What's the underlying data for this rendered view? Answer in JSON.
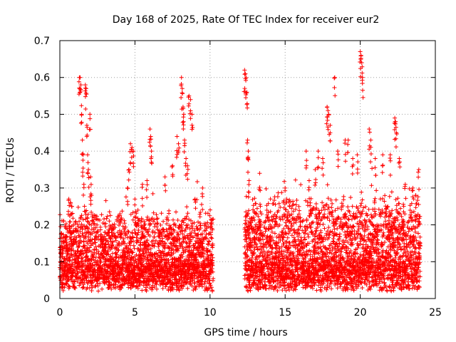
{
  "chart_data": {
    "type": "scatter",
    "title": "Day 168 of 2025, Rate Of TEC Index for receiver eur2",
    "xlabel": "GPS time / hours",
    "ylabel": "ROTI / TECUs",
    "xlim": [
      0,
      25
    ],
    "ylim": [
      0,
      0.7
    ],
    "xticks": [
      0,
      5,
      10,
      15,
      20,
      25
    ],
    "yticks": [
      0,
      0.1,
      0.2,
      0.3,
      0.4,
      0.5,
      0.6,
      0.7
    ],
    "xtick_labels": [
      "0",
      "5",
      "10",
      "15",
      "20",
      "25"
    ],
    "ytick_labels": [
      "0",
      "0.1",
      "0.2",
      "0.3",
      "0.4",
      "0.5",
      "0.6",
      "0.7"
    ],
    "grid": true,
    "marker": "+",
    "color": "#ff0000",
    "series": [
      {
        "segments": [
          {
            "start": 0.0,
            "end": 10.2,
            "baseline": 0.09,
            "spread": 0.16
          },
          {
            "start": 12.3,
            "end": 24.0,
            "baseline": 0.09,
            "spread": 0.2
          }
        ],
        "points": [
          [
            0.05,
            0.14
          ],
          [
            0.4,
            0.17
          ],
          [
            0.6,
            0.27
          ],
          [
            0.7,
            0.26
          ],
          [
            0.8,
            0.25
          ],
          [
            0.9,
            0.2
          ],
          [
            1.3,
            0.6
          ],
          [
            1.35,
            0.6
          ],
          [
            1.4,
            0.58
          ],
          [
            1.45,
            0.5
          ],
          [
            1.5,
            0.43
          ],
          [
            1.55,
            0.39
          ],
          [
            1.6,
            0.31
          ],
          [
            1.7,
            0.58
          ],
          [
            1.75,
            0.57
          ],
          [
            1.8,
            0.47
          ],
          [
            1.85,
            0.39
          ],
          [
            1.9,
            0.35
          ],
          [
            2.0,
            0.5
          ],
          [
            2.05,
            0.33
          ],
          [
            2.1,
            0.28
          ],
          [
            3.0,
            0.18
          ],
          [
            3.5,
            0.2
          ],
          [
            4.0,
            0.23
          ],
          [
            4.5,
            0.3
          ],
          [
            4.6,
            0.35
          ],
          [
            4.7,
            0.42
          ],
          [
            4.8,
            0.41
          ],
          [
            4.9,
            0.4
          ],
          [
            5.0,
            0.27
          ],
          [
            5.2,
            0.24
          ],
          [
            5.5,
            0.31
          ],
          [
            5.8,
            0.32
          ],
          [
            6.0,
            0.46
          ],
          [
            6.05,
            0.44
          ],
          [
            6.1,
            0.4
          ],
          [
            7.0,
            0.33
          ],
          [
            7.5,
            0.36
          ],
          [
            7.8,
            0.44
          ],
          [
            7.9,
            0.42
          ],
          [
            8.1,
            0.6
          ],
          [
            8.15,
            0.57
          ],
          [
            8.2,
            0.52
          ],
          [
            8.25,
            0.5
          ],
          [
            8.3,
            0.43
          ],
          [
            8.4,
            0.38
          ],
          [
            8.5,
            0.36
          ],
          [
            8.6,
            0.55
          ],
          [
            8.7,
            0.54
          ],
          [
            8.8,
            0.5
          ],
          [
            9.0,
            0.27
          ],
          [
            9.5,
            0.3
          ],
          [
            12.3,
            0.62
          ],
          [
            12.35,
            0.61
          ],
          [
            12.4,
            0.6
          ],
          [
            12.45,
            0.56
          ],
          [
            12.5,
            0.43
          ],
          [
            12.55,
            0.4
          ],
          [
            12.6,
            0.32
          ],
          [
            13.3,
            0.34
          ],
          [
            14.0,
            0.2
          ],
          [
            15.0,
            0.3
          ],
          [
            15.1,
            0.27
          ],
          [
            15.3,
            0.25
          ],
          [
            16.4,
            0.4
          ],
          [
            16.6,
            0.32
          ],
          [
            17.0,
            0.35
          ],
          [
            17.2,
            0.4
          ],
          [
            17.5,
            0.38
          ],
          [
            17.8,
            0.52
          ],
          [
            17.85,
            0.51
          ],
          [
            17.9,
            0.5
          ],
          [
            18.0,
            0.47
          ],
          [
            18.3,
            0.6
          ],
          [
            18.5,
            0.4
          ],
          [
            19.0,
            0.43
          ],
          [
            19.2,
            0.43
          ],
          [
            19.5,
            0.38
          ],
          [
            19.8,
            0.39
          ],
          [
            20.0,
            0.67
          ],
          [
            20.05,
            0.66
          ],
          [
            20.1,
            0.64
          ],
          [
            20.15,
            0.6
          ],
          [
            20.6,
            0.46
          ],
          [
            20.7,
            0.43
          ],
          [
            21.0,
            0.38
          ],
          [
            21.5,
            0.39
          ],
          [
            22.0,
            0.39
          ],
          [
            22.3,
            0.49
          ],
          [
            22.35,
            0.48
          ],
          [
            22.4,
            0.45
          ],
          [
            22.6,
            0.38
          ],
          [
            23.0,
            0.31
          ],
          [
            23.5,
            0.3
          ],
          [
            23.7,
            0.28
          ],
          [
            23.9,
            0.35
          ]
        ]
      }
    ]
  }
}
